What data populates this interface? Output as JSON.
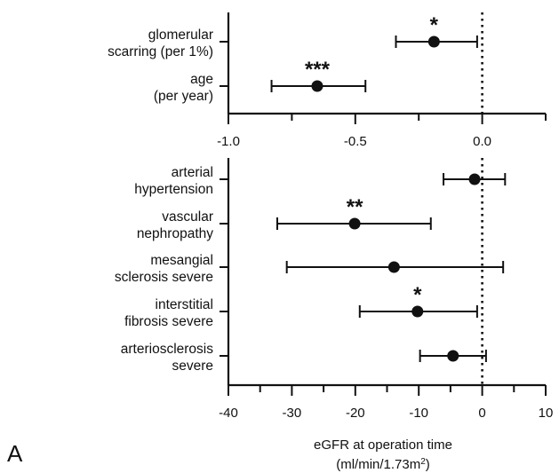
{
  "panel_label": "A",
  "x_title": {
    "line1": "eGFR at operation time",
    "line2_main": "(ml/min/1.73m",
    "line2_sup": "2",
    "line2_end": ")"
  },
  "chart_data": [
    {
      "type": "scatter",
      "subtype": "forest-plot",
      "title": "",
      "xlabel": "",
      "xlim": [
        -1.0,
        0.25
      ],
      "xticks": [
        -1.0,
        -0.5,
        0.0
      ],
      "xtick_labels": [
        "-1.0",
        "-0.5",
        "0.0"
      ],
      "reference_line": 0.0,
      "rows": [
        {
          "label_lines": [
            "glomerular",
            "scarring (per 1%)"
          ],
          "estimate": -0.19,
          "ci_low": -0.34,
          "ci_high": -0.02,
          "significance": "*"
        },
        {
          "label_lines": [
            "age",
            "(per year)"
          ],
          "estimate": -0.65,
          "ci_low": -0.83,
          "ci_high": -0.46,
          "significance": "***"
        }
      ]
    },
    {
      "type": "scatter",
      "subtype": "forest-plot",
      "title": "",
      "xlabel": "eGFR at operation time (ml/min/1.73m2)",
      "xlim": [
        -40,
        10
      ],
      "xticks": [
        -40,
        -30,
        -20,
        -10,
        0,
        10
      ],
      "xtick_labels": [
        "-40",
        "-30",
        "-20",
        "-10",
        "0",
        "10"
      ],
      "reference_line": 0,
      "rows": [
        {
          "label_lines": [
            "arterial",
            "hypertension"
          ],
          "estimate": -1.2,
          "ci_low": -6.1,
          "ci_high": 3.6,
          "significance": ""
        },
        {
          "label_lines": [
            "vascular",
            "nephropathy"
          ],
          "estimate": -20.1,
          "ci_low": -32.3,
          "ci_high": -8.1,
          "significance": "**"
        },
        {
          "label_lines": [
            "mesangial",
            "sclerosis severe"
          ],
          "estimate": -13.9,
          "ci_low": -30.8,
          "ci_high": 3.3,
          "significance": ""
        },
        {
          "label_lines": [
            "interstitial",
            "fibrosis severe"
          ],
          "estimate": -10.2,
          "ci_low": -19.3,
          "ci_high": -0.8,
          "significance": "*"
        },
        {
          "label_lines": [
            "arteriosclerosis",
            "severe"
          ],
          "estimate": -4.6,
          "ci_low": -9.8,
          "ci_high": 0.6,
          "significance": ""
        }
      ]
    }
  ]
}
